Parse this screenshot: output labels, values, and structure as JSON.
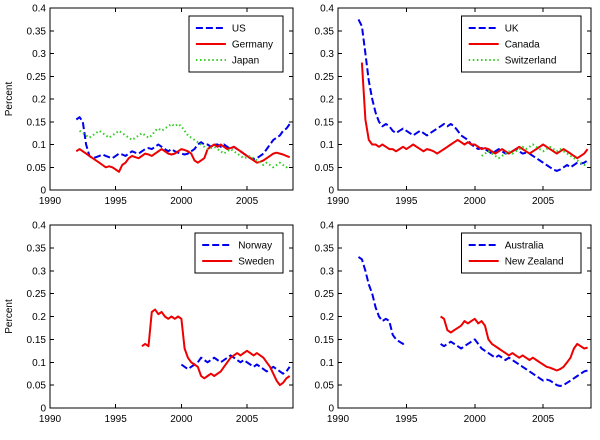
{
  "figure": {
    "background": "#ffffff",
    "axis_color": "#000000",
    "legend_border_color": "#000000",
    "legend_bg": "#ffffff"
  },
  "chart_data": [
    {
      "type": "line",
      "panel": "top-left",
      "title": "",
      "xlabel": "",
      "ylabel": "Percent",
      "xlim": [
        1990,
        2008.5
      ],
      "ylim": [
        0,
        0.4
      ],
      "grid": false,
      "legend_position": "top-right",
      "xticks": [
        1990,
        1995,
        2000,
        2005
      ],
      "xtick_labels": [
        "1990",
        "1995",
        "2000",
        "2005"
      ],
      "yticks": [
        0,
        0.05,
        0.1,
        0.15,
        0.2,
        0.25,
        0.3,
        0.35,
        0.4
      ],
      "ytick_labels": [
        "0",
        "0.05",
        "0.1",
        "0.15",
        "0.2",
        "0.25",
        "0.3",
        "0.35",
        "0.4"
      ],
      "series": [
        {
          "name": "US",
          "color": "#0000ee",
          "line_style": "dashed",
          "line_width": 2,
          "x0": 1992.0,
          "dx": 0.25,
          "y": [
            0.155,
            0.16,
            0.15,
            0.1,
            0.075,
            0.07,
            0.072,
            0.075,
            0.078,
            0.075,
            0.072,
            0.07,
            0.075,
            0.08,
            0.078,
            0.075,
            0.08,
            0.085,
            0.082,
            0.08,
            0.085,
            0.09,
            0.092,
            0.09,
            0.095,
            0.1,
            0.095,
            0.09,
            0.085,
            0.09,
            0.085,
            0.082,
            0.08,
            0.078,
            0.08,
            0.085,
            0.09,
            0.1,
            0.105,
            0.1,
            0.1,
            0.095,
            0.1,
            0.1,
            0.095,
            0.1,
            0.095,
            0.09,
            0.095,
            0.09,
            0.085,
            0.08,
            0.075,
            0.07,
            0.068,
            0.07,
            0.075,
            0.08,
            0.09,
            0.1,
            0.11,
            0.115,
            0.12,
            0.13,
            0.135,
            0.145
          ]
        },
        {
          "name": "Germany",
          "color": "#ee0000",
          "line_style": "solid",
          "line_width": 2,
          "x0": 1992.0,
          "dx": 0.25,
          "y": [
            0.085,
            0.09,
            0.085,
            0.08,
            0.075,
            0.07,
            0.065,
            0.06,
            0.055,
            0.05,
            0.052,
            0.05,
            0.045,
            0.04,
            0.055,
            0.06,
            0.07,
            0.075,
            0.072,
            0.07,
            0.075,
            0.08,
            0.078,
            0.075,
            0.08,
            0.085,
            0.09,
            0.085,
            0.08,
            0.078,
            0.08,
            0.085,
            0.09,
            0.088,
            0.085,
            0.08,
            0.065,
            0.06,
            0.065,
            0.07,
            0.09,
            0.095,
            0.1,
            0.095,
            0.1,
            0.095,
            0.09,
            0.092,
            0.095,
            0.09,
            0.085,
            0.08,
            0.075,
            0.07,
            0.065,
            0.06,
            0.062,
            0.065,
            0.07,
            0.075,
            0.08,
            0.082,
            0.08,
            0.078,
            0.075,
            0.072
          ]
        },
        {
          "name": "Japan",
          "color": "#33cc22",
          "line_style": "dotted",
          "line_width": 2,
          "x0": 1992.25,
          "dx": 0.25,
          "y": [
            0.13,
            0.125,
            0.12,
            0.115,
            0.12,
            0.125,
            0.13,
            0.125,
            0.12,
            0.115,
            0.12,
            0.125,
            0.13,
            0.125,
            0.12,
            0.115,
            0.11,
            0.115,
            0.12,
            0.125,
            0.12,
            0.115,
            0.12,
            0.13,
            0.135,
            0.13,
            0.135,
            0.14,
            0.145,
            0.14,
            0.145,
            0.14,
            0.13,
            0.12,
            0.115,
            0.11,
            0.105,
            0.1,
            0.095,
            0.09,
            0.092,
            0.095,
            0.09,
            0.085,
            0.08,
            0.085,
            0.09,
            0.085,
            0.08,
            0.075,
            0.07,
            0.072,
            0.075,
            0.07,
            0.065,
            0.06,
            0.055,
            0.06,
            0.055,
            0.05,
            0.055,
            0.06,
            0.055,
            0.05,
            0.055
          ]
        }
      ]
    },
    {
      "type": "line",
      "panel": "top-right",
      "title": "",
      "xlabel": "",
      "ylabel": "",
      "xlim": [
        1990,
        2008.5
      ],
      "ylim": [
        0,
        0.4
      ],
      "grid": false,
      "legend_position": "top-right",
      "xticks": [
        1990,
        1995,
        2000,
        2005
      ],
      "xtick_labels": [
        "1990",
        "1995",
        "2000",
        "2005"
      ],
      "yticks": [
        0,
        0.05,
        0.1,
        0.15,
        0.2,
        0.25,
        0.3,
        0.35,
        0.4
      ],
      "ytick_labels": [
        "0",
        "0.05",
        "0.1",
        "0.15",
        "0.2",
        "0.25",
        "0.3",
        "0.35",
        "0.4"
      ],
      "series": [
        {
          "name": "UK",
          "color": "#0000ee",
          "line_style": "dashed",
          "line_width": 2,
          "x0": 1991.5,
          "dx": 0.25,
          "y": [
            0.375,
            0.36,
            0.3,
            0.24,
            0.2,
            0.17,
            0.15,
            0.14,
            0.145,
            0.14,
            0.13,
            0.125,
            0.13,
            0.135,
            0.13,
            0.125,
            0.12,
            0.125,
            0.13,
            0.125,
            0.12,
            0.125,
            0.13,
            0.135,
            0.14,
            0.145,
            0.14,
            0.145,
            0.14,
            0.13,
            0.12,
            0.115,
            0.11,
            0.1,
            0.095,
            0.09,
            0.092,
            0.09,
            0.085,
            0.08,
            0.085,
            0.09,
            0.085,
            0.08,
            0.082,
            0.085,
            0.09,
            0.085,
            0.08,
            0.082,
            0.08,
            0.075,
            0.07,
            0.065,
            0.06,
            0.055,
            0.05,
            0.045,
            0.042,
            0.045,
            0.05,
            0.055,
            0.05,
            0.055,
            0.06,
            0.058,
            0.06,
            0.065
          ]
        },
        {
          "name": "Canada",
          "color": "#ee0000",
          "line_style": "solid",
          "line_width": 2,
          "x0": 1991.75,
          "dx": 0.25,
          "y": [
            0.28,
            0.155,
            0.11,
            0.1,
            0.1,
            0.095,
            0.1,
            0.095,
            0.09,
            0.09,
            0.085,
            0.09,
            0.095,
            0.09,
            0.095,
            0.1,
            0.095,
            0.09,
            0.085,
            0.09,
            0.088,
            0.085,
            0.08,
            0.085,
            0.09,
            0.095,
            0.1,
            0.105,
            0.11,
            0.105,
            0.1,
            0.105,
            0.1,
            0.1,
            0.095,
            0.09,
            0.092,
            0.09,
            0.085,
            0.08,
            0.085,
            0.09,
            0.085,
            0.08,
            0.085,
            0.09,
            0.095,
            0.09,
            0.085,
            0.08,
            0.085,
            0.09,
            0.095,
            0.1,
            0.095,
            0.09,
            0.085,
            0.08,
            0.085,
            0.09,
            0.085,
            0.08,
            0.075,
            0.07,
            0.075,
            0.08,
            0.09
          ]
        },
        {
          "name": "Switzerland",
          "color": "#33cc22",
          "line_style": "dotted",
          "line_width": 2,
          "x0": 2000.5,
          "dx": 0.25,
          "y": [
            0.075,
            0.08,
            0.085,
            0.08,
            0.075,
            0.07,
            0.075,
            0.08,
            0.085,
            0.08,
            0.085,
            0.09,
            0.095,
            0.09,
            0.095,
            0.1,
            0.095,
            0.09,
            0.085,
            0.09,
            0.095,
            0.09,
            0.085,
            0.09,
            0.085,
            0.08,
            0.075,
            0.07,
            0.065,
            0.06,
            0.055,
            0.06
          ]
        }
      ]
    },
    {
      "type": "line",
      "panel": "bottom-left",
      "title": "",
      "xlabel": "",
      "ylabel": "Percent",
      "xlim": [
        1990,
        2008.5
      ],
      "ylim": [
        0,
        0.4
      ],
      "grid": false,
      "legend_position": "top-right",
      "xticks": [
        1990,
        1995,
        2000,
        2005
      ],
      "xtick_labels": [
        "1990",
        "1995",
        "2000",
        "2005"
      ],
      "yticks": [
        0,
        0.05,
        0.1,
        0.15,
        0.2,
        0.25,
        0.3,
        0.35,
        0.4
      ],
      "ytick_labels": [
        "0",
        "0.05",
        "0.1",
        "0.15",
        "0.2",
        "0.25",
        "0.3",
        "0.35",
        "0.4"
      ],
      "series": [
        {
          "name": "Norway",
          "color": "#0000ee",
          "line_style": "dashed",
          "line_width": 2,
          "x0": 2000.0,
          "dx": 0.25,
          "y": [
            0.095,
            0.09,
            0.085,
            0.09,
            0.095,
            0.1,
            0.11,
            0.105,
            0.1,
            0.105,
            0.11,
            0.105,
            0.1,
            0.105,
            0.11,
            0.115,
            0.11,
            0.105,
            0.1,
            0.105,
            0.1,
            0.095,
            0.09,
            0.095,
            0.09,
            0.085,
            0.08,
            0.085,
            0.09,
            0.085,
            0.08,
            0.075,
            0.08,
            0.09
          ]
        },
        {
          "name": "Sweden",
          "color": "#ee0000",
          "line_style": "solid",
          "line_width": 2,
          "x0": 1997.0,
          "dx": 0.25,
          "y": [
            0.135,
            0.14,
            0.135,
            0.21,
            0.215,
            0.205,
            0.21,
            0.2,
            0.195,
            0.2,
            0.195,
            0.2,
            0.195,
            0.13,
            0.11,
            0.1,
            0.095,
            0.09,
            0.07,
            0.065,
            0.07,
            0.075,
            0.07,
            0.075,
            0.08,
            0.09,
            0.1,
            0.11,
            0.115,
            0.12,
            0.115,
            0.12,
            0.125,
            0.12,
            0.115,
            0.12,
            0.115,
            0.11,
            0.1,
            0.09,
            0.075,
            0.06,
            0.05,
            0.055,
            0.065,
            0.07
          ]
        }
      ]
    },
    {
      "type": "line",
      "panel": "bottom-right",
      "title": "",
      "xlabel": "",
      "ylabel": "",
      "xlim": [
        1990,
        2008.5
      ],
      "ylim": [
        0,
        0.4
      ],
      "grid": false,
      "legend_position": "top-right",
      "xticks": [
        1990,
        1995,
        2000,
        2005
      ],
      "xtick_labels": [
        "1990",
        "1995",
        "2000",
        "2005"
      ],
      "yticks": [
        0,
        0.05,
        0.1,
        0.15,
        0.2,
        0.25,
        0.3,
        0.35,
        0.4
      ],
      "ytick_labels": [
        "0",
        "0.05",
        "0.1",
        "0.15",
        "0.2",
        "0.25",
        "0.3",
        "0.35",
        "0.4"
      ],
      "series": [
        {
          "name": "Australia",
          "color": "#0000ee",
          "line_style": "dashed",
          "line_width": 2,
          "x0": 1991.5,
          "dx": 0.25,
          "y": [
            0.33,
            0.325,
            0.3,
            0.27,
            0.25,
            0.22,
            0.2,
            0.19,
            0.195,
            0.19,
            0.16,
            0.15,
            0.145,
            0.14,
            0.145,
            null,
            null,
            null,
            null,
            null,
            null,
            null,
            null,
            null,
            0.14,
            0.135,
            0.14,
            0.145,
            0.14,
            0.135,
            0.13,
            0.135,
            0.14,
            0.145,
            0.15,
            0.14,
            0.13,
            0.125,
            0.12,
            0.115,
            0.11,
            0.115,
            0.11,
            0.105,
            0.11,
            0.105,
            0.1,
            0.095,
            0.09,
            0.085,
            0.08,
            0.075,
            0.07,
            0.065,
            0.06,
            0.062,
            0.06,
            0.055,
            0.05,
            0.048,
            0.05,
            0.055,
            0.06,
            0.065,
            0.07,
            0.075,
            0.08,
            0.082
          ]
        },
        {
          "name": "New Zealand",
          "color": "#ee0000",
          "line_style": "solid",
          "line_width": 2,
          "x0": 1997.5,
          "dx": 0.25,
          "y": [
            0.2,
            0.195,
            0.17,
            0.165,
            0.17,
            0.175,
            0.18,
            0.19,
            0.185,
            0.19,
            0.195,
            0.185,
            0.19,
            0.18,
            0.15,
            0.14,
            0.135,
            0.13,
            0.125,
            0.12,
            0.115,
            0.12,
            0.115,
            0.11,
            0.115,
            0.11,
            0.105,
            0.11,
            0.105,
            0.1,
            0.095,
            0.09,
            0.088,
            0.085,
            0.082,
            0.085,
            0.09,
            0.1,
            0.11,
            0.13,
            0.14,
            0.135,
            0.13,
            0.132
          ]
        }
      ]
    }
  ]
}
